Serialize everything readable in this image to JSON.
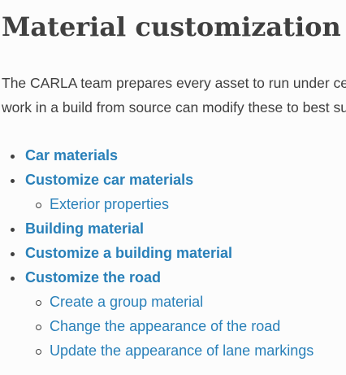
{
  "heading": "Material customization",
  "intro": {
    "line1": "The CARLA team prepares every asset to run under certain default settings. However, users that",
    "line2": "work in a build from source can modify these to best suit their needs."
  },
  "toc": [
    {
      "label": "Car materials",
      "level": 1
    },
    {
      "label": "Customize car materials",
      "level": 1
    },
    {
      "label": "Exterior properties",
      "level": 2
    },
    {
      "label": "Building material",
      "level": 1
    },
    {
      "label": "Customize a building material",
      "level": 1
    },
    {
      "label": "Customize the road",
      "level": 1
    },
    {
      "label": "Create a group material",
      "level": 2
    },
    {
      "label": "Change the appearance of the road",
      "level": 2
    },
    {
      "label": "Update the appearance of lane markings",
      "level": 2
    }
  ],
  "colors": {
    "link": "#2980b9",
    "text": "#404040",
    "background": "#fcfcfc"
  }
}
